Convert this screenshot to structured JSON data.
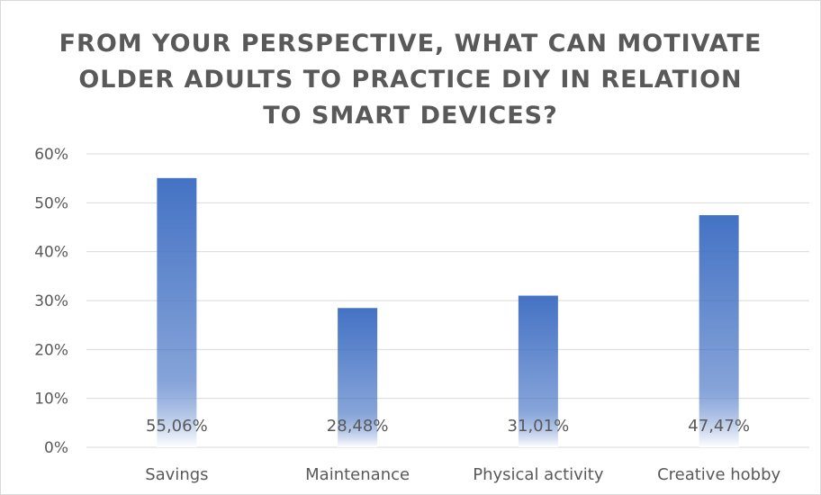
{
  "chart_data": {
    "type": "bar",
    "title": "FROM YOUR PERSPECTIVE, WHAT CAN MOTIVATE OLDER ADULTS TO PRACTICE DIY IN RELATION TO SMART DEVICES?",
    "categories": [
      "Savings",
      "Maintenance",
      "Physical activity",
      "Creative hobby"
    ],
    "values": [
      55.06,
      28.48,
      31.01,
      47.47
    ],
    "data_labels": [
      "55,06%",
      "28,48%",
      "31,01%",
      "47,47%"
    ],
    "ylim": [
      0,
      60
    ],
    "yticks": [
      0,
      10,
      20,
      30,
      40,
      50,
      60
    ],
    "ytick_labels": [
      "0%",
      "10%",
      "20%",
      "30%",
      "40%",
      "50%",
      "60%"
    ],
    "xlabel": "",
    "ylabel": "",
    "grid": true,
    "legend": "none",
    "colors": {
      "bar_top": "#4472c4",
      "bar_bottom": "#ffffff",
      "grid": "#d9d9d9",
      "text": "#595959"
    }
  }
}
